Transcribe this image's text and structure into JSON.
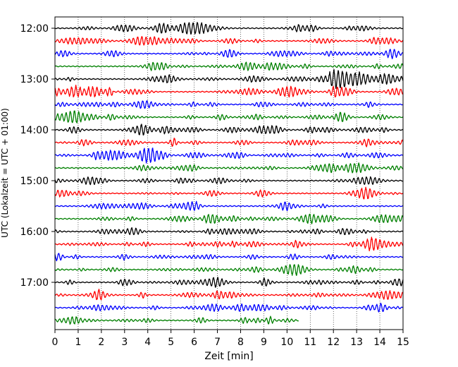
{
  "chart_data": {
    "type": "line",
    "title": "",
    "xlabel": "Zeit  [min]",
    "ylabel": "UTC (Lokalzeit = UTC + 01:00)",
    "xlim": [
      0,
      15
    ],
    "x_ticks": [
      "0",
      "1",
      "2",
      "3",
      "4",
      "5",
      "6",
      "7",
      "8",
      "9",
      "10",
      "11",
      "12",
      "13",
      "14",
      "15"
    ],
    "y_tick_labels": [
      "12:00",
      "13:00",
      "14:00",
      "15:00",
      "16:00",
      "17:00"
    ],
    "grid": "vertical dotted",
    "row_colors": [
      "#000000",
      "#ff0000",
      "#0000ff",
      "#008000"
    ],
    "row_count": 24,
    "last_row_end_min": 10.5,
    "events": [
      {
        "row": 4,
        "start_min": 11.8,
        "end_min": 15,
        "amplitude_rows": 0.5
      },
      {
        "row": 5,
        "start_min": 0,
        "end_min": 2.5,
        "amplitude_rows": 0.45
      }
    ]
  }
}
